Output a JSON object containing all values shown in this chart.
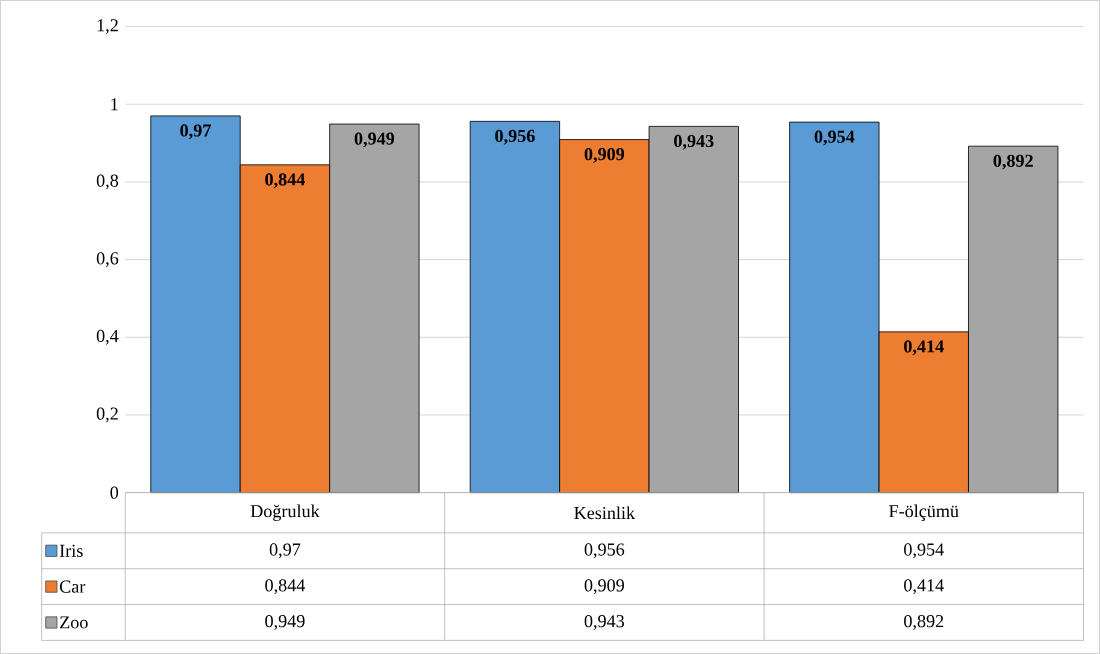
{
  "chart_data": {
    "type": "bar",
    "categories": [
      "Doğruluk",
      "Kesinlik",
      "F-ölçümü"
    ],
    "series": [
      {
        "name": "Iris",
        "color": "#5b9bd5",
        "values": [
          0.97,
          0.956,
          0.954
        ],
        "value_labels": [
          "0,97",
          "0,956",
          "0,954"
        ]
      },
      {
        "name": "Car",
        "color": "#ed7d31",
        "values": [
          0.844,
          0.909,
          0.414
        ],
        "value_labels": [
          "0,844",
          "0,909",
          "0,414"
        ]
      },
      {
        "name": "Zoo",
        "color": "#a5a5a5",
        "values": [
          0.949,
          0.943,
          0.892
        ],
        "value_labels": [
          "0,949",
          "0,943",
          "0,892"
        ]
      }
    ],
    "ylim": [
      0,
      1.2
    ],
    "yticks": [
      0,
      {
        "value": 0.2,
        "label": "0,2"
      },
      {
        "value": 0.4,
        "label": "0,4"
      },
      {
        "value": 0.6,
        "label": "0,6"
      },
      {
        "value": 0.8,
        "label": "0,8"
      },
      1,
      {
        "value": 1.2,
        "label": "1,2"
      }
    ],
    "grid": "y",
    "legend": "bottom"
  }
}
